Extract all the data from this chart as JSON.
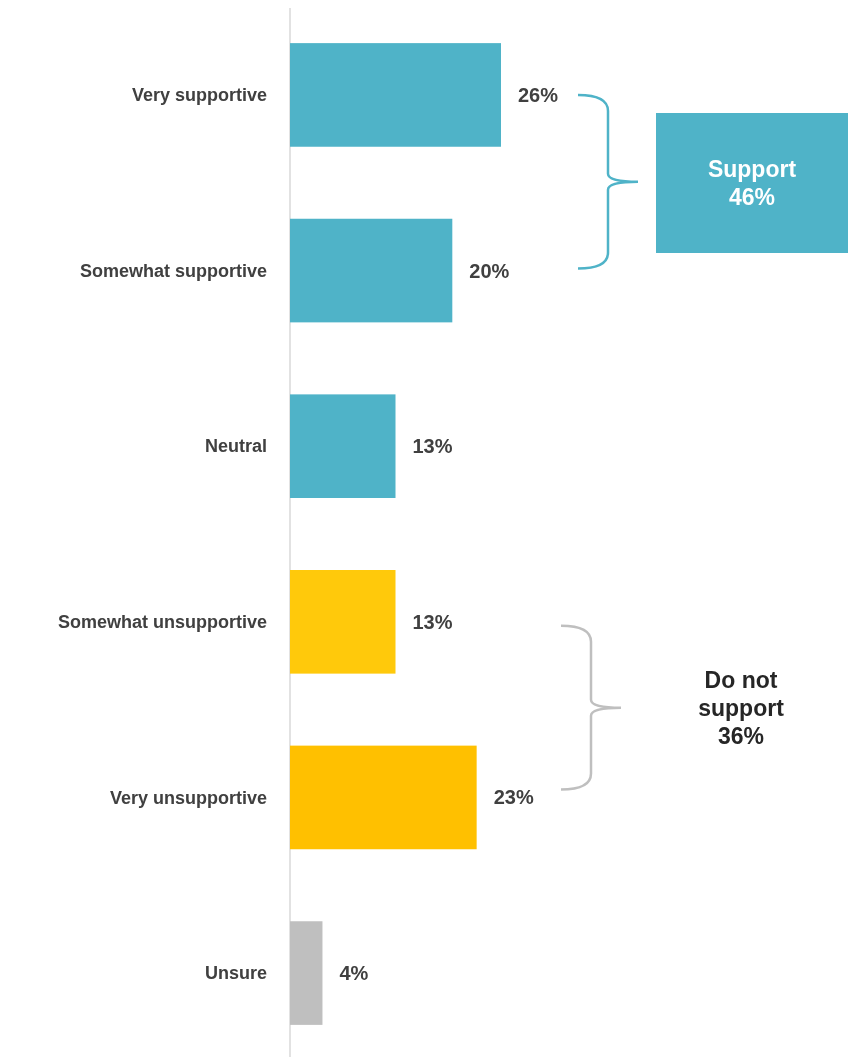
{
  "chart_data": {
    "type": "bar",
    "orientation": "horizontal",
    "categories": [
      "Very supportive",
      "Somewhat supportive",
      "Neutral",
      "Somewhat unsupportive",
      "Very unsupportive",
      "Unsure"
    ],
    "values": [
      26,
      20,
      13,
      13,
      23,
      4
    ],
    "colors": [
      "#4fb3c8",
      "#4fb3c8",
      "#4fb3c8",
      "#ffc90b",
      "#ffc000",
      "#bfbfbf"
    ],
    "value_labels": [
      "26%",
      "20%",
      "13%",
      "13%",
      "23%",
      "4%"
    ],
    "xlim": [
      0,
      26
    ],
    "tick_labels": "y",
    "annotations": [
      "Support\n46%",
      "Do not\nsupport\n36%"
    ]
  }
}
